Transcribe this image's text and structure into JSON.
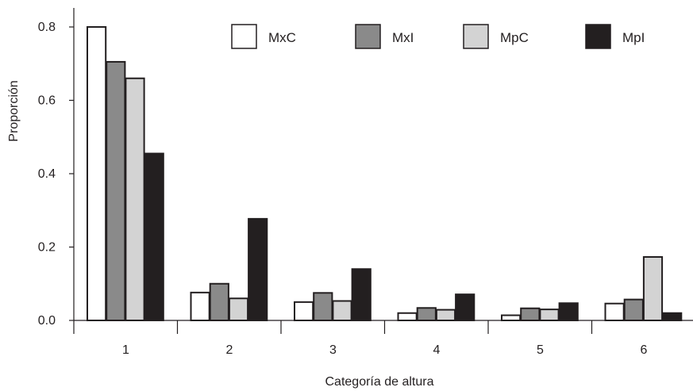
{
  "chart_data": {
    "type": "bar",
    "title": "",
    "xlabel": "Categoría de altura",
    "ylabel": "Proporción",
    "ylim": [
      0,
      0.8
    ],
    "yticks": [
      "0.0",
      "0.2",
      "0.4",
      "0.6",
      "0.8"
    ],
    "categories": [
      "1",
      "2",
      "3",
      "4",
      "5",
      "6"
    ],
    "grid": false,
    "legend": "top",
    "series": [
      {
        "name": "MxC",
        "color": "#ffffff",
        "values": [
          0.8,
          0.076,
          0.05,
          0.02,
          0.014,
          0.046
        ]
      },
      {
        "name": "MxI",
        "color": "#8a8a8a",
        "values": [
          0.705,
          0.1,
          0.075,
          0.034,
          0.033,
          0.057
        ]
      },
      {
        "name": "MpC",
        "color": "#d3d3d3",
        "values": [
          0.66,
          0.06,
          0.053,
          0.029,
          0.03,
          0.173
        ]
      },
      {
        "name": "MpI",
        "color": "#231f20",
        "values": [
          0.455,
          0.277,
          0.14,
          0.071,
          0.047,
          0.02
        ]
      }
    ]
  }
}
